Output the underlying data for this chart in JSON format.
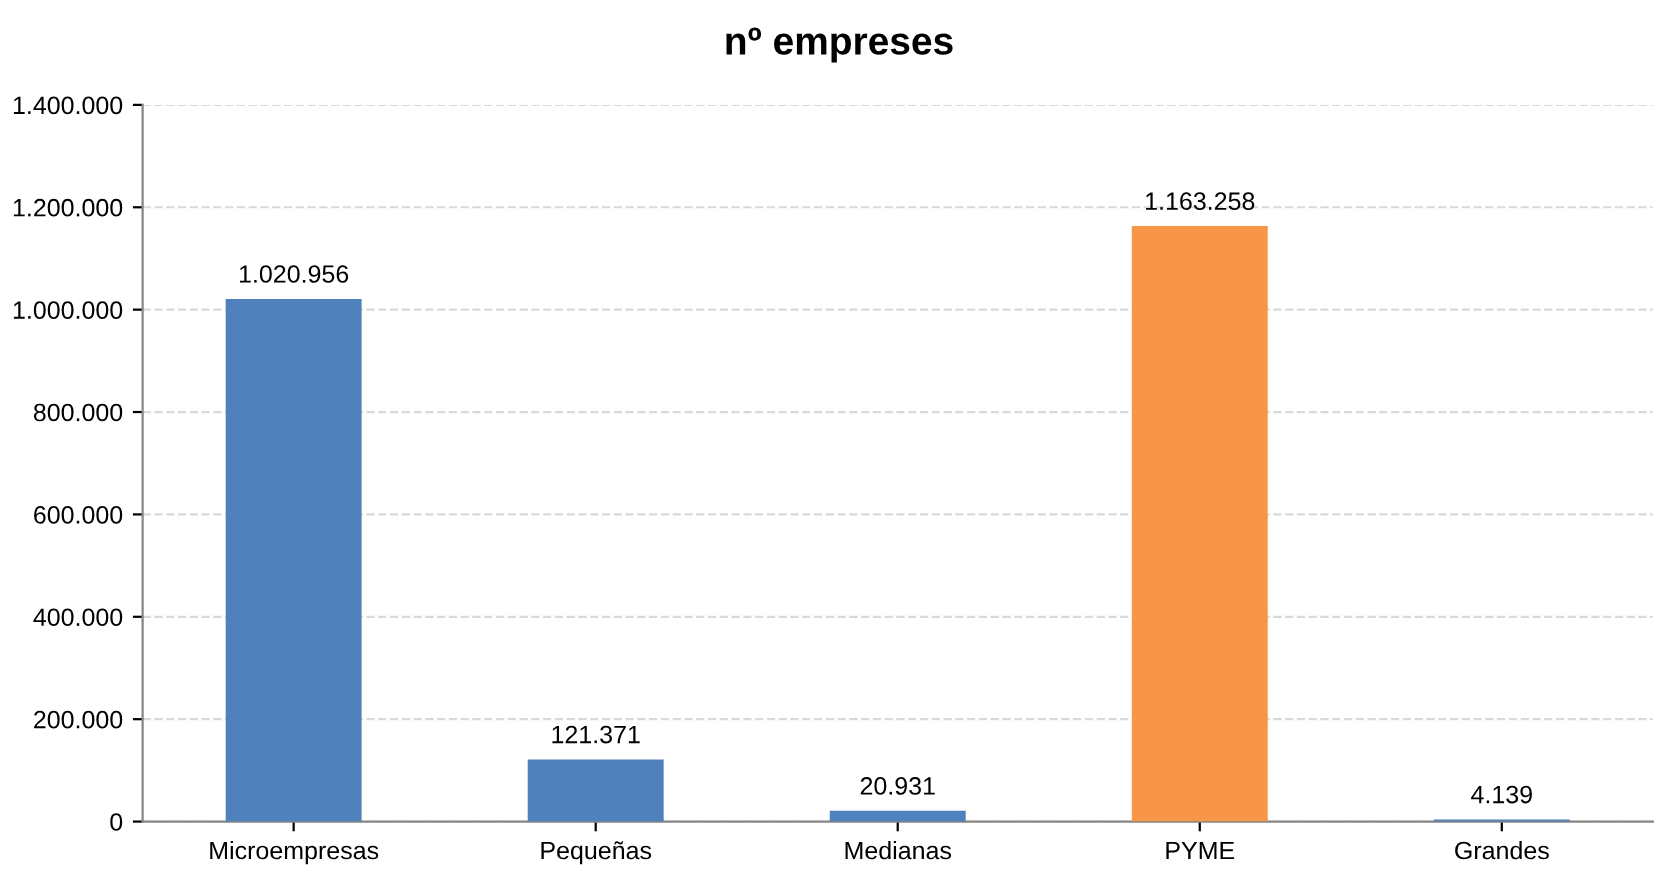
{
  "chart_data": {
    "type": "bar",
    "title": "nº empreses",
    "categories": [
      "Microempresas",
      "Pequeñas",
      "Medianas",
      "PYME",
      "Grandes"
    ],
    "values": [
      1020956,
      121371,
      20931,
      1163258,
      4139
    ],
    "colors": [
      "#4f81bd",
      "#4f81bd",
      "#4f81bd",
      "#f79646",
      "#4f81bd"
    ],
    "value_labels": [
      "1.020.956",
      "121.371",
      "20.931",
      "1.163.258",
      "4.139"
    ],
    "ylim": [
      0,
      1400000
    ],
    "yticks": [
      0,
      {
        "value": 200000,
        "label": "200.000"
      },
      {
        "value": 400000,
        "label": "400.000"
      },
      {
        "value": 600000,
        "label": "600.000"
      },
      {
        "value": 800000,
        "label": "800.000"
      },
      {
        "value": 1000000,
        "label": "1.000.000"
      },
      {
        "value": 1200000,
        "label": "1.200.000"
      },
      {
        "value": 1400000,
        "label": "1.400.000"
      }
    ],
    "grid": "y"
  }
}
